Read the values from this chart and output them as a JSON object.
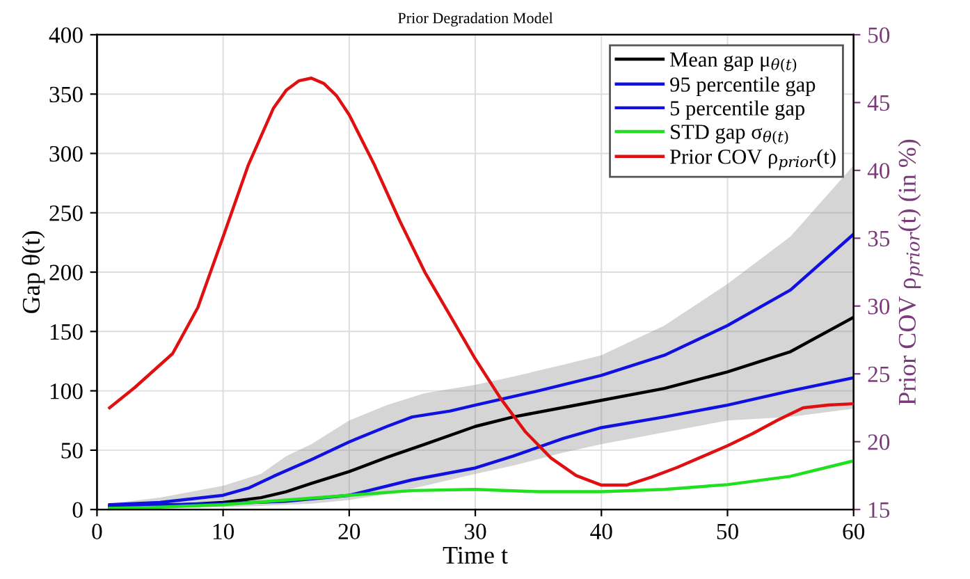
{
  "chart_data": {
    "type": "line",
    "title": "Prior Degradation Model",
    "xlabel": "Time t",
    "ylabel": "Gap θ(t)",
    "y2label": "Prior COV ρ$_{prior}$(t) (in %)",
    "xlim": [
      0,
      60
    ],
    "xticks": [
      0,
      10,
      20,
      30,
      40,
      50,
      60
    ],
    "ylim": [
      0,
      400
    ],
    "yticks": [
      0,
      50,
      100,
      150,
      200,
      250,
      300,
      350,
      400
    ],
    "y2lim": [
      15,
      50
    ],
    "y2ticks": [
      15,
      20,
      25,
      30,
      35,
      40,
      45,
      50
    ],
    "grid": true,
    "legend": "top right",
    "line_style": "solid",
    "marker": "none",
    "series": [
      {
        "name": "Mean gap μ$_{θ(t)}$",
        "color": "#000000",
        "x": [
          1,
          5,
          10,
          13,
          15,
          17,
          20,
          23,
          26,
          30,
          33,
          37,
          40,
          45,
          50,
          55,
          60
        ],
        "values": [
          2,
          3,
          6,
          10,
          15,
          22,
          32,
          44,
          55,
          70,
          78,
          86,
          92,
          102,
          116,
          133,
          162
        ],
        "lower": [
          1,
          2,
          2,
          3,
          4,
          5,
          8,
          13,
          20,
          30,
          37,
          48,
          55,
          65,
          75,
          78,
          85
        ],
        "upper": [
          5,
          10,
          20,
          30,
          45,
          55,
          75,
          88,
          98,
          105,
          112,
          122,
          130,
          155,
          190,
          230,
          290
        ]
      },
      {
        "name": "95 percentile gap",
        "color": "#1010e0",
        "x": [
          1,
          5,
          10,
          12,
          14,
          17,
          20,
          23,
          25,
          28,
          30,
          35,
          40,
          45,
          50,
          55,
          60
        ],
        "values": [
          4,
          6,
          12,
          18,
          28,
          42,
          57,
          70,
          78,
          83,
          88,
          100,
          113,
          130,
          155,
          185,
          232
        ]
      },
      {
        "name": "5 percentile gap",
        "color": "#1010e0",
        "x": [
          1,
          5,
          10,
          15,
          20,
          25,
          30,
          33,
          37,
          40,
          45,
          50,
          55,
          60
        ],
        "values": [
          3,
          4,
          5,
          7,
          12,
          25,
          35,
          45,
          60,
          69,
          78,
          88,
          100,
          111
        ]
      },
      {
        "name": "STD gap σ$_{θ(t)}$",
        "color": "#20e020",
        "x": [
          1,
          5,
          10,
          15,
          20,
          25,
          30,
          35,
          40,
          45,
          50,
          55,
          60
        ],
        "values": [
          1,
          2,
          4,
          8,
          12,
          16,
          17,
          15,
          15,
          17,
          21,
          28,
          41
        ]
      },
      {
        "name": "Prior COV ρ$_{prior}$(t)",
        "color": "#e01010",
        "axis": "y2",
        "x": [
          1,
          3,
          6,
          8,
          10,
          12,
          14,
          15,
          16,
          17,
          18,
          19,
          20,
          22,
          24,
          26,
          28,
          30,
          32,
          34,
          36,
          38,
          40,
          42,
          44,
          46,
          48,
          50,
          52,
          54,
          56,
          58,
          60
        ],
        "values": [
          22.5,
          24.0,
          26.5,
          29.9,
          35.1,
          40.4,
          44.6,
          45.9,
          46.6,
          46.8,
          46.4,
          45.5,
          44.1,
          40.4,
          36.3,
          32.5,
          29.3,
          26.1,
          23.2,
          20.7,
          18.8,
          17.5,
          16.8,
          16.8,
          17.4,
          18.1,
          18.9,
          19.7,
          20.6,
          21.6,
          22.5,
          22.7,
          22.8
        ]
      }
    ]
  }
}
